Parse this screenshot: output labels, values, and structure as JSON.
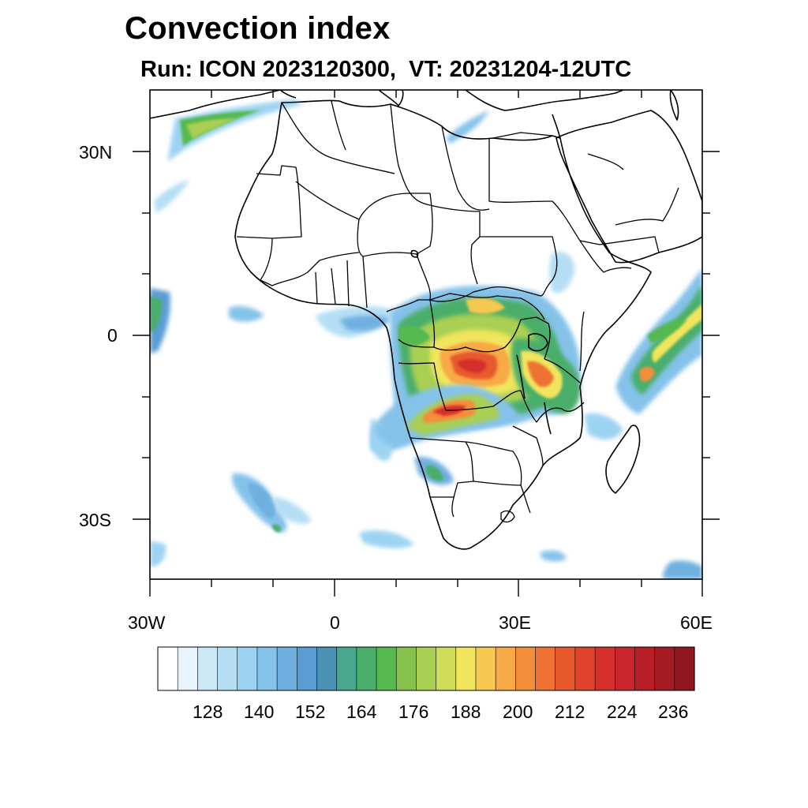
{
  "title": "Convection index",
  "subtitle": "Run: ICON 2023120300,  VT: 20231204-12UTC",
  "axes": {
    "lat_labels": [
      "30N",
      "0",
      "30S"
    ],
    "lon_labels": [
      "30W",
      "0",
      "30E",
      "60E"
    ]
  },
  "colorbar": {
    "labels": [
      "128",
      "140",
      "152",
      "164",
      "176",
      "188",
      "200",
      "212",
      "224",
      "236"
    ],
    "colors": [
      "#ffffff",
      "#e8f4fb",
      "#cce8f6",
      "#b5def4",
      "#9dd3f2",
      "#85c2ea",
      "#70b0e0",
      "#5a9dd4",
      "#4a92b4",
      "#4aa78f",
      "#48ae6a",
      "#55b94f",
      "#87c24f",
      "#a9cf53",
      "#cfdd59",
      "#f0e55c",
      "#f5c850",
      "#f7aa45",
      "#f48e3b",
      "#ee7233",
      "#e85a2e",
      "#e0432c",
      "#d62f2c",
      "#c8252c",
      "#b81f28",
      "#a51b24",
      "#901620"
    ]
  },
  "chart_data": {
    "type": "heatmap",
    "title": "Convection index",
    "subtitle": "Run: ICON 2023120300,  VT: 20231204-12UTC",
    "lon_range": [
      -30,
      60
    ],
    "lat_range": [
      -40,
      40
    ],
    "lon_ticks": [
      -30,
      0,
      30,
      60
    ],
    "lat_ticks": [
      30,
      0,
      -30
    ],
    "colorbar_ticks": [
      128,
      140,
      152,
      164,
      176,
      188,
      200,
      212,
      224,
      236
    ],
    "notes": "Highest values (200-236) over Congo Basin / central Africa and northern Zambia; moderate values over East African highlands and western Indian Ocean band; low values over North Atlantic jet band, South Atlantic and southern Africa."
  }
}
